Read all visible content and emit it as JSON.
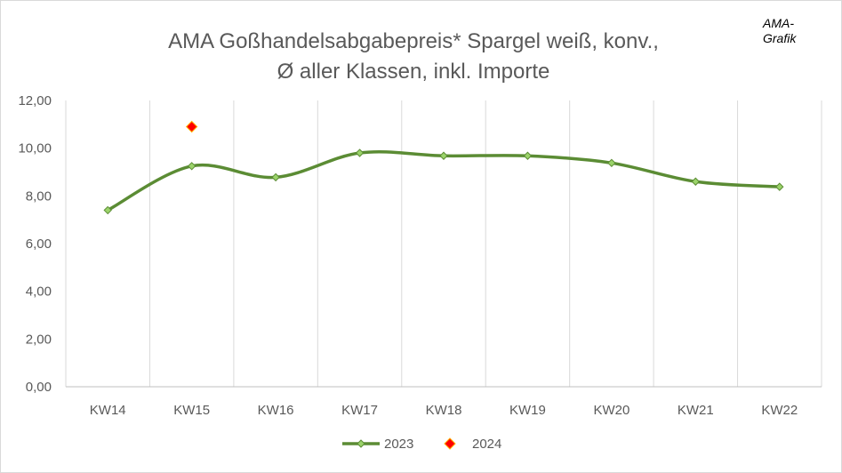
{
  "chart_data": {
    "type": "line",
    "title": [
      "AMA Goßhandelsabgabepreis*  Spargel weiß, konv.,",
      "Ø aller Klassen, inkl. Importe"
    ],
    "badge": "AMA-\nGrafik",
    "categories": [
      "KW14",
      "KW15",
      "KW16",
      "KW17",
      "KW18",
      "KW19",
      "KW20",
      "KW21",
      "KW22"
    ],
    "ylim": [
      0,
      12
    ],
    "yticks": [
      "0,00",
      "2,00",
      "4,00",
      "6,00",
      "8,00",
      "10,00",
      "12,00"
    ],
    "grid": "vertical",
    "legend_position": "bottom",
    "series": [
      {
        "name": "2023",
        "values": [
          7.4,
          9.25,
          8.78,
          9.8,
          9.68,
          9.68,
          9.38,
          8.6,
          8.38
        ],
        "color": "#5b8c34",
        "marker_color": "#9bd36a",
        "style": "smooth-line"
      },
      {
        "name": "2024",
        "values": [
          null,
          10.9,
          null,
          null,
          null,
          null,
          null,
          null,
          null
        ],
        "color": "#ff0000",
        "marker_color": "#ffb000",
        "style": "marker-only"
      }
    ]
  }
}
